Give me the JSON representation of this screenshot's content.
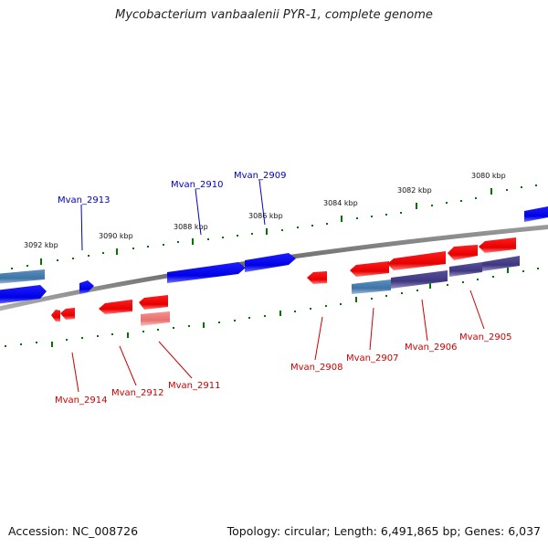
{
  "title": "Mycobacterium vanbaalenii PYR-1, complete genome",
  "accession": "Accession: NC_008726",
  "topology": "Topology: circular; Length: 6,491,865 bp; Genes: 6,037",
  "colors": {
    "forward": "#0000ee",
    "reverse": "#ee0000",
    "forward_label": "#0000bb",
    "reverse_label": "#cc0000",
    "steelblue": "#4682b4",
    "slateblue": "#483d8b",
    "pink": "#f08080",
    "tick": "#007700",
    "axis": "#777777"
  },
  "scale_labels": [
    "3080 kbp",
    "3082 kbp",
    "3084 kbp",
    "3086 kbp",
    "3088 kbp",
    "3090 kbp",
    "3092 kbp"
  ],
  "forward_genes": [
    "Mvan_2909",
    "Mvan_2910",
    "Mvan_2913"
  ],
  "reverse_genes": [
    "Mvan_2905",
    "Mvan_2906",
    "Mvan_2907",
    "Mvan_2908",
    "Mvan_2911",
    "Mvan_2912",
    "Mvan_2914"
  ]
}
